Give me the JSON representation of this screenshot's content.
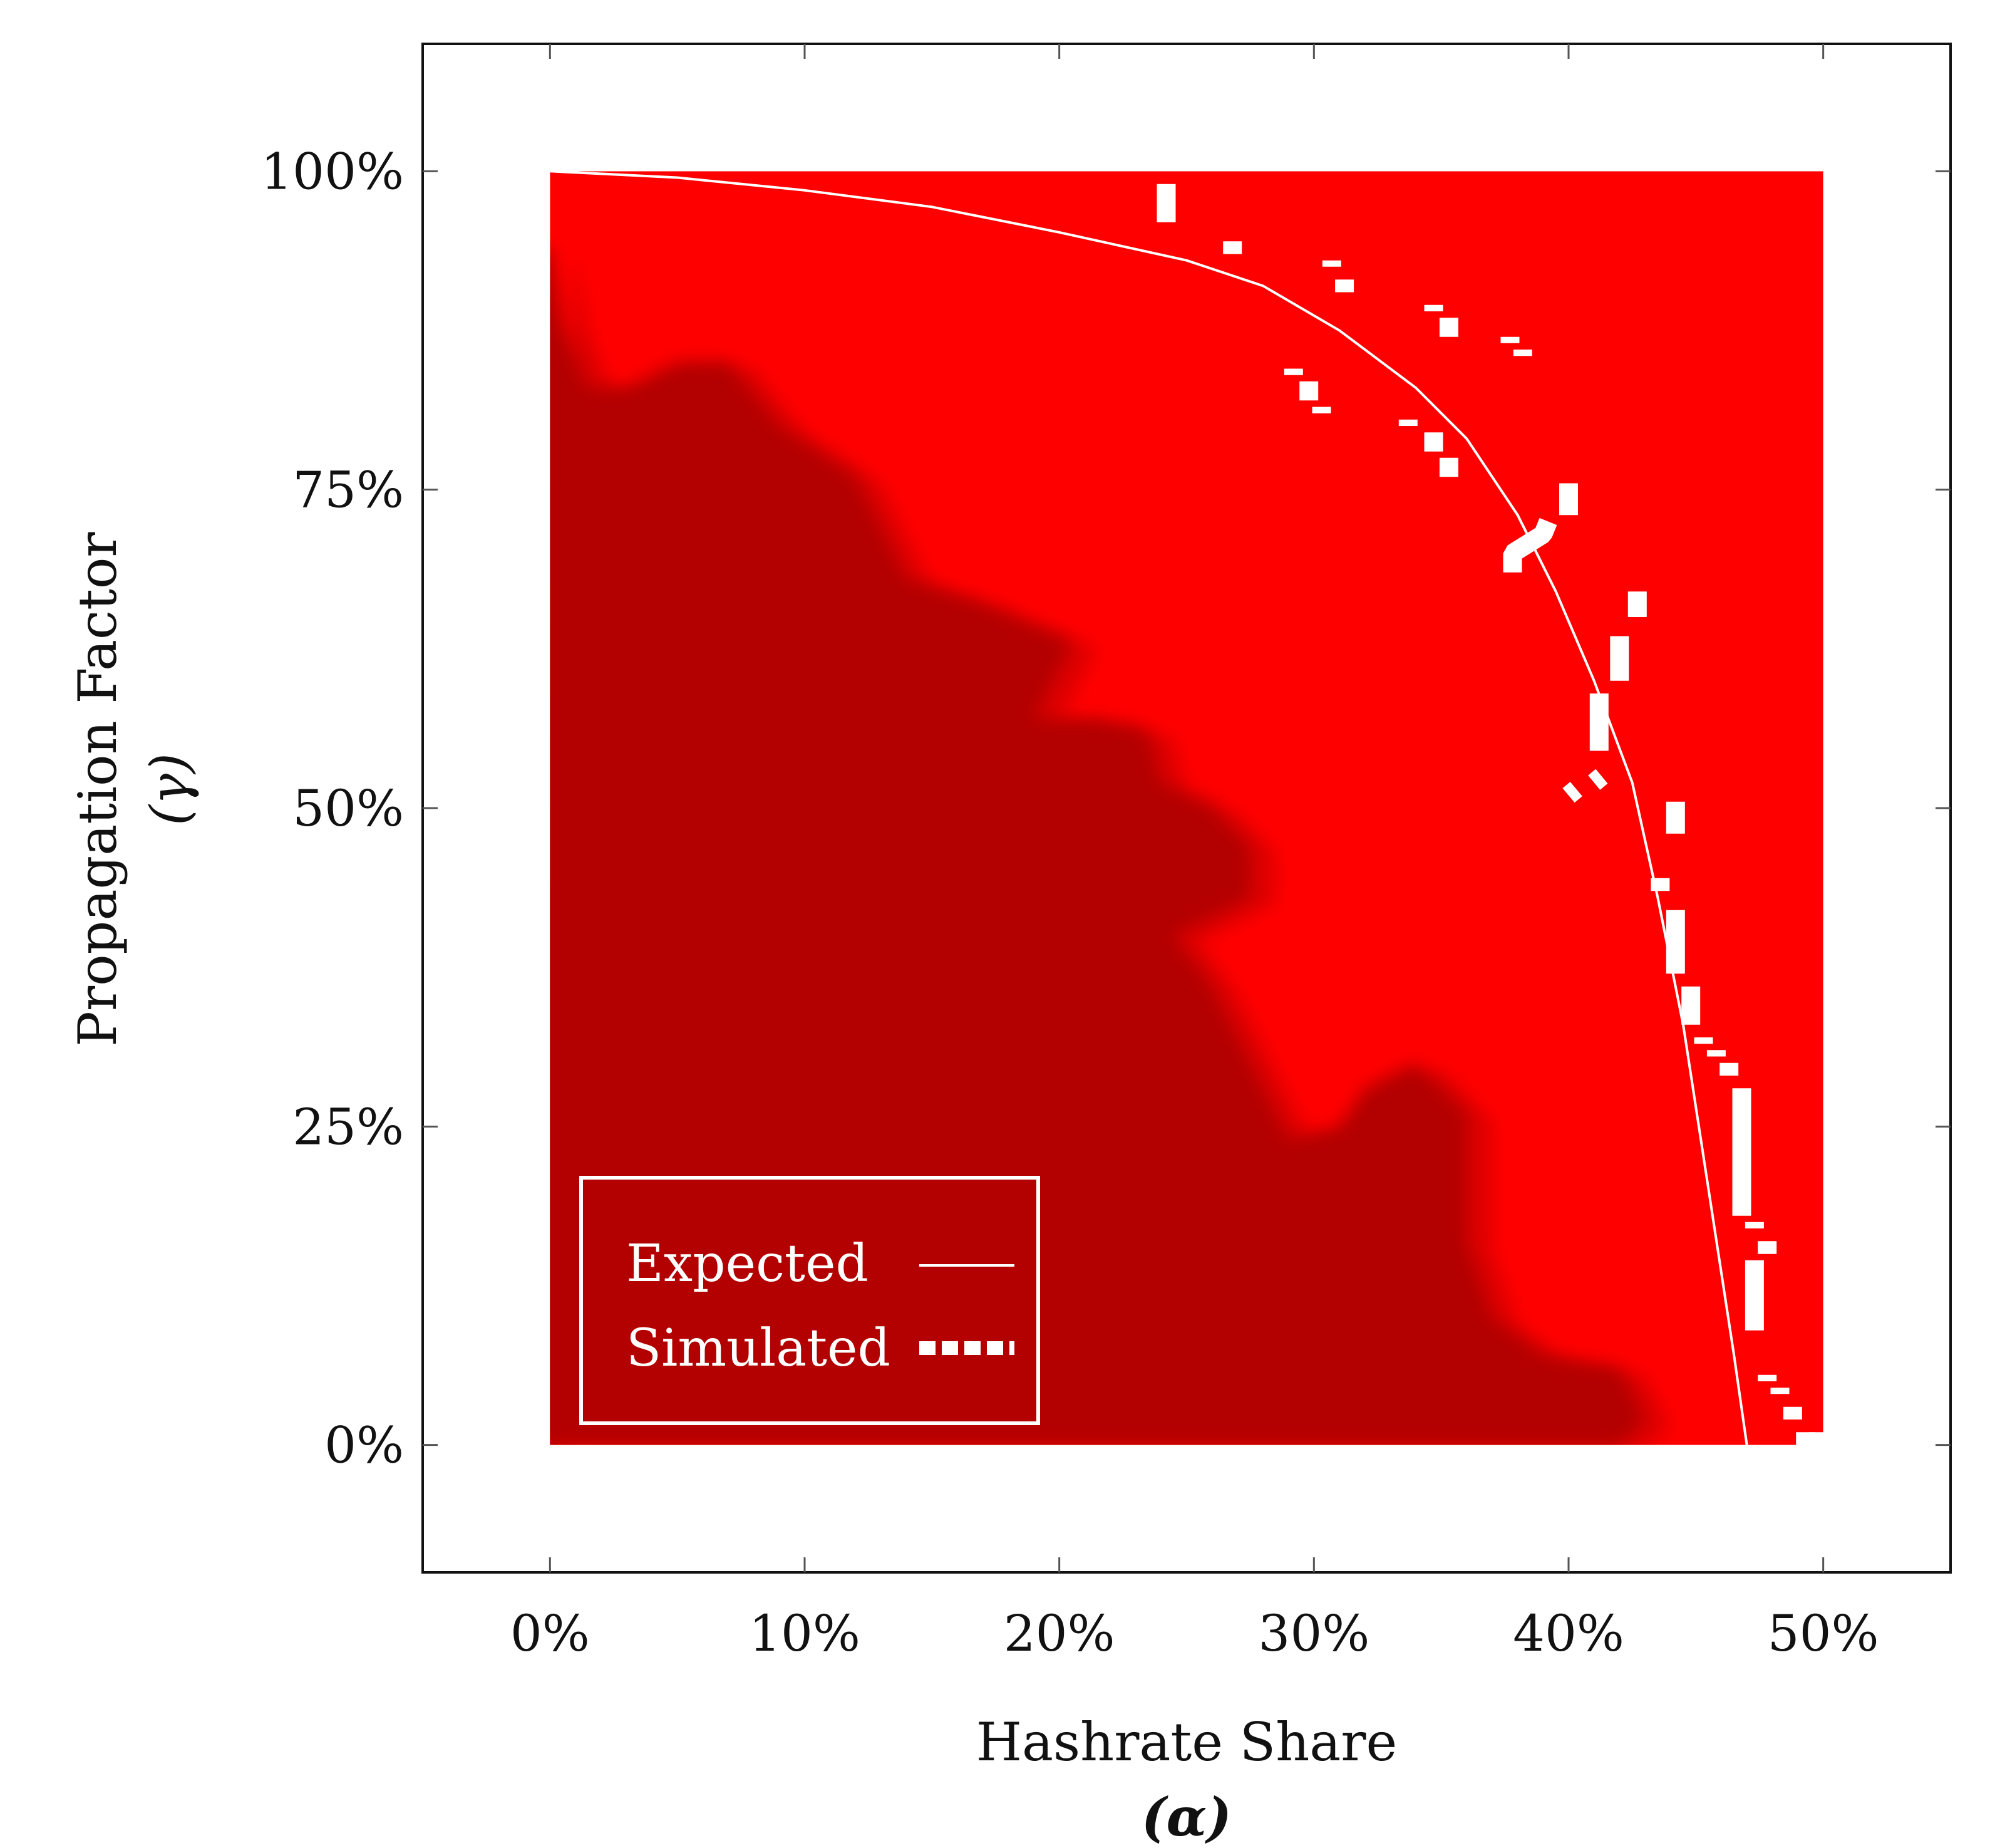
{
  "chart_data": {
    "type": "heatmap",
    "title": "",
    "xlabel": "Hashrate Share",
    "xlabel_symbol": "(α)",
    "ylabel": "Propagation Factor",
    "ylabel_symbol": "(γ)",
    "xlim": [
      -0.05,
      0.55
    ],
    "ylim": [
      -0.1,
      1.1
    ],
    "x_ticks": [
      0,
      0.1,
      0.2,
      0.3,
      0.4,
      0.5
    ],
    "x_tick_labels": [
      "0%",
      "10%",
      "20%",
      "30%",
      "40%",
      "50%"
    ],
    "y_ticks": [
      0,
      0.25,
      0.5,
      0.75,
      1.0
    ],
    "y_tick_labels": [
      "0%",
      "25%",
      "50%",
      "75%",
      "100%"
    ],
    "grid": false,
    "legend_position": "bottom-left",
    "legend": [
      {
        "label": "Expected",
        "style": "solid-line"
      },
      {
        "label": "Simulated",
        "style": "dashed-thick"
      }
    ],
    "colors": {
      "profitable": "#ff0000",
      "unprofitable": "#b30000",
      "transition": "#dd0000",
      "curves": "#ffffff"
    },
    "heatmap_extent": {
      "x": [
        0,
        0.5
      ],
      "y": [
        0,
        1.0
      ]
    },
    "unprofitable_region_boundary": [
      [
        0.0,
        0.94
      ],
      [
        0.005,
        0.88
      ],
      [
        0.015,
        0.83
      ],
      [
        0.03,
        0.83
      ],
      [
        0.05,
        0.85
      ],
      [
        0.07,
        0.85
      ],
      [
        0.09,
        0.8
      ],
      [
        0.12,
        0.76
      ],
      [
        0.14,
        0.68
      ],
      [
        0.17,
        0.66
      ],
      [
        0.205,
        0.63
      ],
      [
        0.19,
        0.57
      ],
      [
        0.215,
        0.57
      ],
      [
        0.235,
        0.56
      ],
      [
        0.24,
        0.52
      ],
      [
        0.26,
        0.5
      ],
      [
        0.275,
        0.47
      ],
      [
        0.275,
        0.43
      ],
      [
        0.245,
        0.4
      ],
      [
        0.26,
        0.36
      ],
      [
        0.275,
        0.3
      ],
      [
        0.29,
        0.24
      ],
      [
        0.31,
        0.25
      ],
      [
        0.32,
        0.28
      ],
      [
        0.34,
        0.3
      ],
      [
        0.36,
        0.26
      ],
      [
        0.36,
        0.16
      ],
      [
        0.37,
        0.1
      ],
      [
        0.39,
        0.07
      ],
      [
        0.42,
        0.06
      ],
      [
        0.43,
        0.02
      ],
      [
        0.42,
        0.0
      ],
      [
        0.0,
        0.0
      ]
    ],
    "expected_curve": {
      "name": "Expected",
      "x": [
        0.0,
        0.05,
        0.1,
        0.15,
        0.2,
        0.25,
        0.28,
        0.31,
        0.34,
        0.36,
        0.38,
        0.395,
        0.41,
        0.425,
        0.435,
        0.445,
        0.455,
        0.465,
        0.47
      ],
      "y": [
        1.0,
        0.995,
        0.985,
        0.972,
        0.952,
        0.93,
        0.91,
        0.875,
        0.83,
        0.79,
        0.73,
        0.67,
        0.6,
        0.52,
        0.43,
        0.33,
        0.2,
        0.07,
        0.0
      ]
    },
    "simulated_segments": {
      "name": "Simulated",
      "segments": [
        [
          [
            0.242,
            0.96
          ],
          [
            0.242,
            0.99
          ]
        ],
        [
          [
            0.268,
            0.935
          ],
          [
            0.268,
            0.945
          ]
        ],
        [
          [
            0.307,
            0.925
          ],
          [
            0.307,
            0.93
          ]
        ],
        [
          [
            0.312,
            0.905
          ],
          [
            0.312,
            0.915
          ]
        ],
        [
          [
            0.347,
            0.89
          ],
          [
            0.347,
            0.895
          ]
        ],
        [
          [
            0.353,
            0.87
          ],
          [
            0.353,
            0.885
          ]
        ],
        [
          [
            0.377,
            0.865
          ],
          [
            0.377,
            0.87
          ]
        ],
        [
          [
            0.382,
            0.855
          ],
          [
            0.382,
            0.86
          ]
        ],
        [
          [
            0.292,
            0.84
          ],
          [
            0.292,
            0.845
          ]
        ],
        [
          [
            0.298,
            0.82
          ],
          [
            0.298,
            0.835
          ]
        ],
        [
          [
            0.303,
            0.81
          ],
          [
            0.303,
            0.815
          ]
        ],
        [
          [
            0.337,
            0.8
          ],
          [
            0.337,
            0.805
          ]
        ],
        [
          [
            0.347,
            0.78
          ],
          [
            0.347,
            0.795
          ]
        ],
        [
          [
            0.353,
            0.76
          ],
          [
            0.353,
            0.775
          ]
        ],
        [
          [
            0.4,
            0.73
          ],
          [
            0.4,
            0.755
          ]
        ],
        [
          [
            0.378,
            0.685
          ],
          [
            0.378,
            0.7
          ],
          [
            0.39,
            0.715
          ],
          [
            0.392,
            0.725
          ]
        ],
        [
          [
            0.427,
            0.65
          ],
          [
            0.427,
            0.67
          ]
        ],
        [
          [
            0.42,
            0.6
          ],
          [
            0.42,
            0.635
          ]
        ],
        [
          [
            0.412,
            0.545
          ],
          [
            0.412,
            0.59
          ]
        ],
        [
          [
            0.4,
            0.51
          ],
          [
            0.403,
            0.515
          ]
        ],
        [
          [
            0.41,
            0.52
          ],
          [
            0.413,
            0.525
          ]
        ],
        [
          [
            0.442,
            0.48
          ],
          [
            0.442,
            0.505
          ]
        ],
        [
          [
            0.436,
            0.435
          ],
          [
            0.436,
            0.445
          ]
        ],
        [
          [
            0.442,
            0.37
          ],
          [
            0.442,
            0.42
          ]
        ],
        [
          [
            0.448,
            0.33
          ],
          [
            0.448,
            0.36
          ]
        ],
        [
          [
            0.453,
            0.315
          ],
          [
            0.453,
            0.32
          ]
        ],
        [
          [
            0.458,
            0.305
          ],
          [
            0.458,
            0.31
          ]
        ],
        [
          [
            0.463,
            0.29
          ],
          [
            0.463,
            0.3
          ]
        ],
        [
          [
            0.468,
            0.18
          ],
          [
            0.468,
            0.28
          ]
        ],
        [
          [
            0.473,
            0.17
          ],
          [
            0.473,
            0.175
          ]
        ],
        [
          [
            0.473,
            0.09
          ],
          [
            0.473,
            0.145
          ]
        ],
        [
          [
            0.478,
            0.15
          ],
          [
            0.478,
            0.16
          ]
        ],
        [
          [
            0.478,
            0.05
          ],
          [
            0.478,
            0.055
          ]
        ],
        [
          [
            0.483,
            0.04
          ],
          [
            0.483,
            0.045
          ]
        ],
        [
          [
            0.488,
            0.02
          ],
          [
            0.488,
            0.03
          ]
        ],
        [
          [
            0.493,
            0.0
          ],
          [
            0.493,
            0.01
          ]
        ],
        [
          [
            0.498,
            0.0
          ],
          [
            0.498,
            0.01
          ]
        ]
      ]
    }
  }
}
